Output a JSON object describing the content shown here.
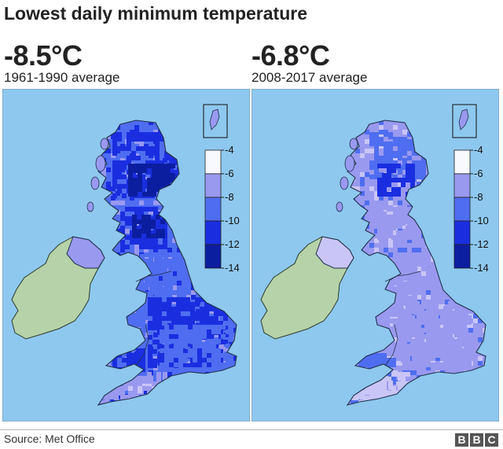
{
  "title": "Lowest daily minimum temperature",
  "colors": {
    "sea": "#8ec8ef",
    "ireland": "#b6d2a9",
    "border": "#20304a",
    "scale": [
      "#f7f9ff",
      "#c9c5f7",
      "#9999f0",
      "#4f6df0",
      "#1a2ee0",
      "#0c1ea0",
      "#070f55"
    ]
  },
  "legend_ticks": [
    "-4",
    "-6",
    "-8",
    "-10",
    "-12",
    "-14"
  ],
  "panels": [
    {
      "value": "-8.5°C",
      "period": "1961-1990 average",
      "tone": "cold"
    },
    {
      "value": "-6.8°C",
      "period": "2008-2017 average",
      "tone": "mild"
    }
  ],
  "footer": {
    "source": "Source: Met Office",
    "logo_letters": [
      "B",
      "B",
      "C"
    ]
  }
}
